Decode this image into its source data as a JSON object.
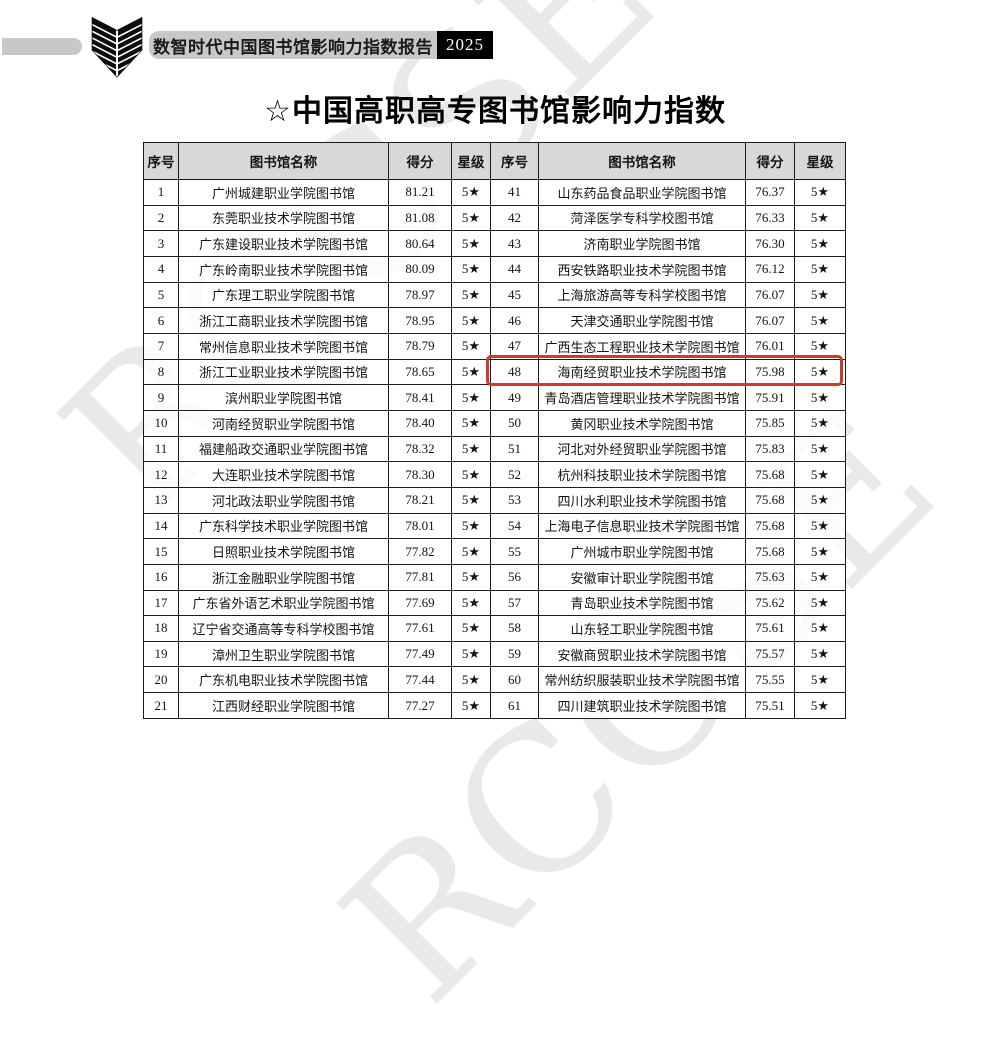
{
  "watermark_text": "RCCSE",
  "banner": {
    "report_title": "数智时代中国图书馆影响力指数报告",
    "year": "2025"
  },
  "page_title": "☆中国高职高专图书馆影响力指数",
  "colors": {
    "highlight_red": "#d03a2c",
    "header_gray": "#d8d8d8",
    "banner_gray": "#c8c8c8"
  },
  "table": {
    "columns": [
      "序号",
      "图书馆名称",
      "得分",
      "星级"
    ],
    "highlighted_rank": "48",
    "left_rows": [
      {
        "rank": "1",
        "name": "广州城建职业学院图书馆",
        "score": "81.21",
        "stars": "5★"
      },
      {
        "rank": "2",
        "name": "东莞职业技术学院图书馆",
        "score": "81.08",
        "stars": "5★"
      },
      {
        "rank": "3",
        "name": "广东建设职业技术学院图书馆",
        "score": "80.64",
        "stars": "5★"
      },
      {
        "rank": "4",
        "name": "广东岭南职业技术学院图书馆",
        "score": "80.09",
        "stars": "5★"
      },
      {
        "rank": "5",
        "name": "广东理工职业学院图书馆",
        "score": "78.97",
        "stars": "5★"
      },
      {
        "rank": "6",
        "name": "浙江工商职业技术学院图书馆",
        "score": "78.95",
        "stars": "5★"
      },
      {
        "rank": "7",
        "name": "常州信息职业技术学院图书馆",
        "score": "78.79",
        "stars": "5★"
      },
      {
        "rank": "8",
        "name": "浙江工业职业技术学院图书馆",
        "score": "78.65",
        "stars": "5★"
      },
      {
        "rank": "9",
        "name": "滨州职业学院图书馆",
        "score": "78.41",
        "stars": "5★"
      },
      {
        "rank": "10",
        "name": "河南经贸职业学院图书馆",
        "score": "78.40",
        "stars": "5★"
      },
      {
        "rank": "11",
        "name": "福建船政交通职业学院图书馆",
        "score": "78.32",
        "stars": "5★"
      },
      {
        "rank": "12",
        "name": "大连职业技术学院图书馆",
        "score": "78.30",
        "stars": "5★"
      },
      {
        "rank": "13",
        "name": "河北政法职业学院图书馆",
        "score": "78.21",
        "stars": "5★"
      },
      {
        "rank": "14",
        "name": "广东科学技术职业学院图书馆",
        "score": "78.01",
        "stars": "5★"
      },
      {
        "rank": "15",
        "name": "日照职业技术学院图书馆",
        "score": "77.82",
        "stars": "5★"
      },
      {
        "rank": "16",
        "name": "浙江金融职业学院图书馆",
        "score": "77.81",
        "stars": "5★"
      },
      {
        "rank": "17",
        "name": "广东省外语艺术职业学院图书馆",
        "score": "77.69",
        "stars": "5★"
      },
      {
        "rank": "18",
        "name": "辽宁省交通高等专科学校图书馆",
        "score": "77.61",
        "stars": "5★"
      },
      {
        "rank": "19",
        "name": "漳州卫生职业学院图书馆",
        "score": "77.49",
        "stars": "5★"
      },
      {
        "rank": "20",
        "name": "广东机电职业技术学院图书馆",
        "score": "77.44",
        "stars": "5★"
      },
      {
        "rank": "21",
        "name": "江西财经职业学院图书馆",
        "score": "77.27",
        "stars": "5★"
      }
    ],
    "right_rows": [
      {
        "rank": "41",
        "name": "山东药品食品职业学院图书馆",
        "score": "76.37",
        "stars": "5★"
      },
      {
        "rank": "42",
        "name": "菏泽医学专科学校图书馆",
        "score": "76.33",
        "stars": "5★"
      },
      {
        "rank": "43",
        "name": "济南职业学院图书馆",
        "score": "76.30",
        "stars": "5★"
      },
      {
        "rank": "44",
        "name": "西安铁路职业技术学院图书馆",
        "score": "76.12",
        "stars": "5★"
      },
      {
        "rank": "45",
        "name": "上海旅游高等专科学校图书馆",
        "score": "76.07",
        "stars": "5★"
      },
      {
        "rank": "46",
        "name": "天津交通职业学院图书馆",
        "score": "76.07",
        "stars": "5★"
      },
      {
        "rank": "47",
        "name": "广西生态工程职业技术学院图书馆",
        "score": "76.01",
        "stars": "5★"
      },
      {
        "rank": "48",
        "name": "海南经贸职业技术学院图书馆",
        "score": "75.98",
        "stars": "5★"
      },
      {
        "rank": "49",
        "name": "青岛酒店管理职业技术学院图书馆",
        "score": "75.91",
        "stars": "5★"
      },
      {
        "rank": "50",
        "name": "黄冈职业技术学院图书馆",
        "score": "75.85",
        "stars": "5★"
      },
      {
        "rank": "51",
        "name": "河北对外经贸职业学院图书馆",
        "score": "75.83",
        "stars": "5★"
      },
      {
        "rank": "52",
        "name": "杭州科技职业技术学院图书馆",
        "score": "75.68",
        "stars": "5★"
      },
      {
        "rank": "53",
        "name": "四川水利职业技术学院图书馆",
        "score": "75.68",
        "stars": "5★"
      },
      {
        "rank": "54",
        "name": "上海电子信息职业技术学院图书馆",
        "score": "75.68",
        "stars": "5★"
      },
      {
        "rank": "55",
        "name": "广州城市职业学院图书馆",
        "score": "75.68",
        "stars": "5★"
      },
      {
        "rank": "56",
        "name": "安徽审计职业学院图书馆",
        "score": "75.63",
        "stars": "5★"
      },
      {
        "rank": "57",
        "name": "青岛职业技术学院图书馆",
        "score": "75.62",
        "stars": "5★"
      },
      {
        "rank": "58",
        "name": "山东轻工职业学院图书馆",
        "score": "75.61",
        "stars": "5★"
      },
      {
        "rank": "59",
        "name": "安徽商贸职业技术学院图书馆",
        "score": "75.57",
        "stars": "5★"
      },
      {
        "rank": "60",
        "name": "常州纺织服装职业技术学院图书馆",
        "score": "75.55",
        "stars": "5★"
      },
      {
        "rank": "61",
        "name": "四川建筑职业技术学院图书馆",
        "score": "75.51",
        "stars": "5★"
      }
    ]
  }
}
